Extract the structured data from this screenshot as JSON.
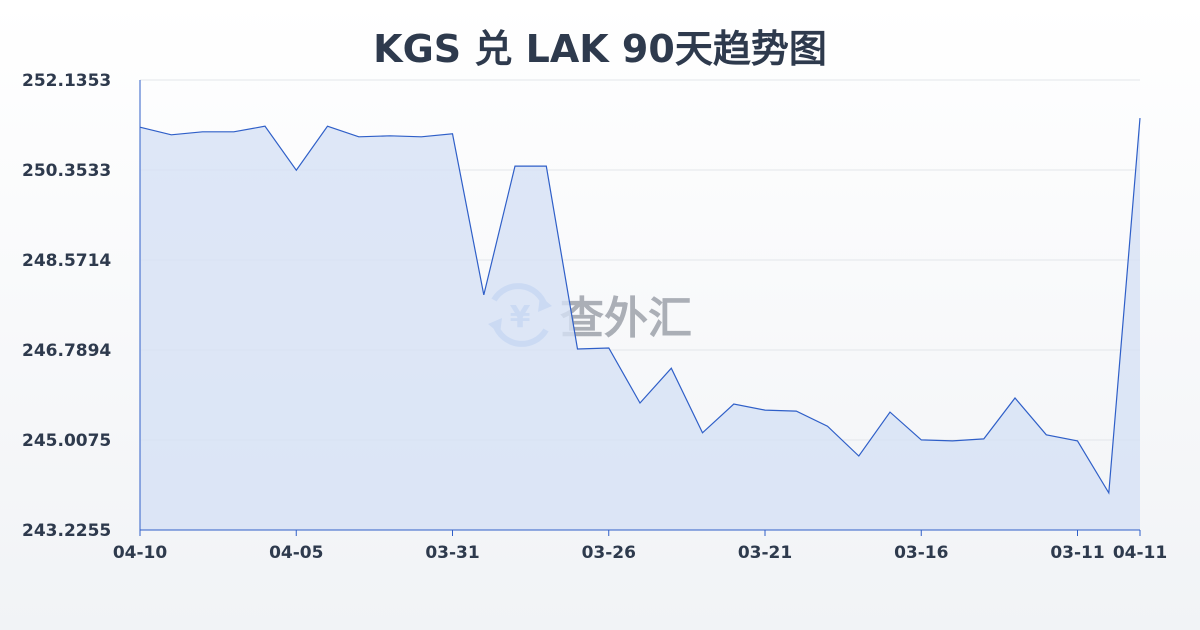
{
  "chart_data": {
    "type": "area",
    "title": "KGS 兑 LAK 90天趋势图",
    "xlabel": "",
    "ylabel": "",
    "ylim": [
      243.2255,
      252.1353
    ],
    "y_ticks": [
      "252.1353",
      "250.3533",
      "248.5714",
      "246.7894",
      "245.0075",
      "243.2255"
    ],
    "x_tick_labels": [
      {
        "index": 0,
        "label": "04-10"
      },
      {
        "index": 5,
        "label": "04-05"
      },
      {
        "index": 10,
        "label": "03-31"
      },
      {
        "index": 15,
        "label": "03-26"
      },
      {
        "index": 20,
        "label": "03-21"
      },
      {
        "index": 25,
        "label": "03-16"
      },
      {
        "index": 30,
        "label": "03-11"
      },
      {
        "index": 32,
        "label": "04-11"
      }
    ],
    "x": [
      "04-10",
      "04-09",
      "04-08",
      "04-07",
      "04-06",
      "04-05",
      "04-04",
      "04-03",
      "04-02",
      "04-01",
      "03-31",
      "03-30",
      "03-29",
      "03-28",
      "03-27",
      "03-26",
      "03-25",
      "03-24",
      "03-23",
      "03-22",
      "03-21",
      "03-20",
      "03-19",
      "03-18",
      "03-17",
      "03-16",
      "03-15",
      "03-14",
      "03-13",
      "03-12",
      "03-11",
      "03-10",
      "04-11"
    ],
    "values": [
      251.2,
      251.05,
      251.11,
      251.11,
      251.22,
      250.35,
      251.22,
      251.01,
      251.03,
      251.01,
      251.07,
      247.88,
      250.43,
      250.43,
      246.81,
      246.83,
      245.74,
      246.43,
      245.15,
      245.72,
      245.6,
      245.58,
      245.28,
      244.69,
      245.56,
      245.01,
      244.99,
      245.03,
      245.84,
      245.11,
      244.99,
      243.96,
      251.38
    ],
    "grid": true,
    "legend": "none",
    "colors": {
      "line": "#2f5fc8",
      "fill": "#d6e1f5",
      "grid": "#e3e6ea",
      "text": "#2e3a4d"
    }
  },
  "watermark": {
    "text": "查外汇",
    "icon": "yuan-exchange-icon"
  }
}
